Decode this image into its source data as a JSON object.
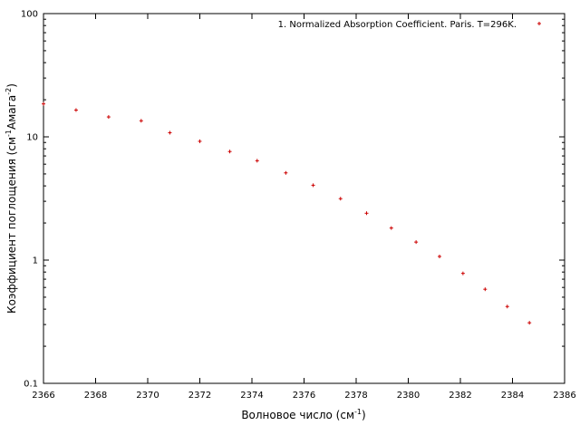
{
  "chart_data": {
    "type": "scatter",
    "title": "",
    "xlabel": "Волновое число (см",
    "xlabel_sup": "-1",
    "xlabel_end": ")",
    "ylabel": "Коэффициент поглощения (см",
    "ylabel_sup1": "-1",
    "ylabel_mid": "Амага",
    "ylabel_sup2": "-2",
    "ylabel_end": ")",
    "xlim": [
      2366,
      2386
    ],
    "ylim": [
      0.1,
      100
    ],
    "y_scale": "log",
    "grid": false,
    "legend_position": "top-right",
    "x_ticks": [
      2366,
      2368,
      2370,
      2372,
      2374,
      2376,
      2378,
      2380,
      2382,
      2384,
      2386
    ],
    "y_ticks": [
      0.1,
      1,
      10,
      100
    ],
    "x_tick_labels": [
      "2366",
      "2368",
      "2370",
      "2372",
      "2374",
      "2376",
      "2378",
      "2380",
      "2382",
      "2384",
      "2386"
    ],
    "y_tick_labels": [
      "0.1",
      "1",
      "10",
      "100"
    ],
    "series": [
      {
        "name": "1. Normalized Absorption Coefficient. Paris. T=296K.",
        "color": "#cc0000",
        "marker": "plus",
        "x": [
          2366.0,
          2367.25,
          2368.5,
          2369.75,
          2370.85,
          2372.0,
          2373.15,
          2374.2,
          2375.3,
          2376.35,
          2377.4,
          2378.4,
          2379.35,
          2380.3,
          2381.2,
          2382.1,
          2382.95,
          2383.8,
          2384.65
        ],
        "y": [
          18.5,
          16.5,
          14.5,
          13.5,
          10.8,
          9.2,
          7.6,
          6.4,
          5.1,
          4.05,
          3.15,
          2.4,
          1.82,
          1.4,
          1.07,
          0.78,
          0.58,
          0.42,
          0.31
        ]
      }
    ]
  }
}
